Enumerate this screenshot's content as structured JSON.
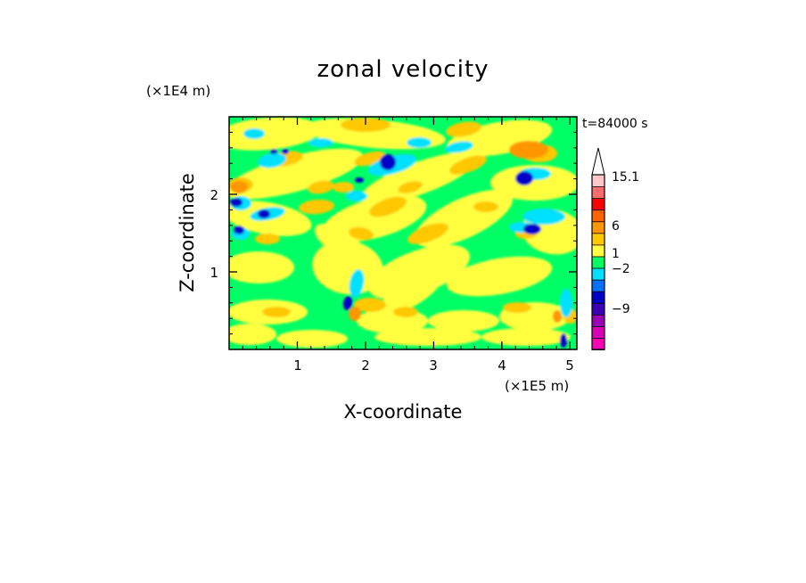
{
  "chart_data": {
    "type": "heatmap",
    "title": "zonal velocity",
    "xlabel": "X-coordinate",
    "ylabel": "Z-coordinate",
    "x_scale_label": "(×1E5 m)",
    "y_scale_label": "(×1E4 m)",
    "time_label": "t=84000 s",
    "xlim": [
      0,
      5.1
    ],
    "ylim": [
      0,
      3.0
    ],
    "x_ticks": [
      1,
      2,
      3,
      4,
      5
    ],
    "y_ticks": [
      1,
      2
    ],
    "x_tick_labels": [
      "1",
      "2",
      "3",
      "4",
      "5"
    ],
    "y_tick_labels": [
      "1",
      "2"
    ],
    "grid": false,
    "colorbar": {
      "levels": [
        -15.1,
        -12,
        -9,
        -6,
        -4,
        -2,
        -1,
        0,
        1,
        2,
        4,
        6,
        9,
        12,
        15.1
      ],
      "labels": [
        "15.1",
        "6",
        "1",
        "−2",
        "−9"
      ],
      "label_values": [
        15.1,
        6,
        1,
        -2,
        -9
      ],
      "colors_bottom_to_top": [
        "#ff00b4",
        "#d700b4",
        "#9a00b4",
        "#3c00b4",
        "#0000c8",
        "#0070ff",
        "#00e0ff",
        "#00ff64",
        "#ffff40",
        "#ffc800",
        "#ff9600",
        "#ff6400",
        "#ff0000",
        "#ff6e6e",
        "#ffc8c8"
      ],
      "extend_top": "triangle"
    },
    "series": [
      {
        "name": "",
        "values": []
      }
    ]
  }
}
